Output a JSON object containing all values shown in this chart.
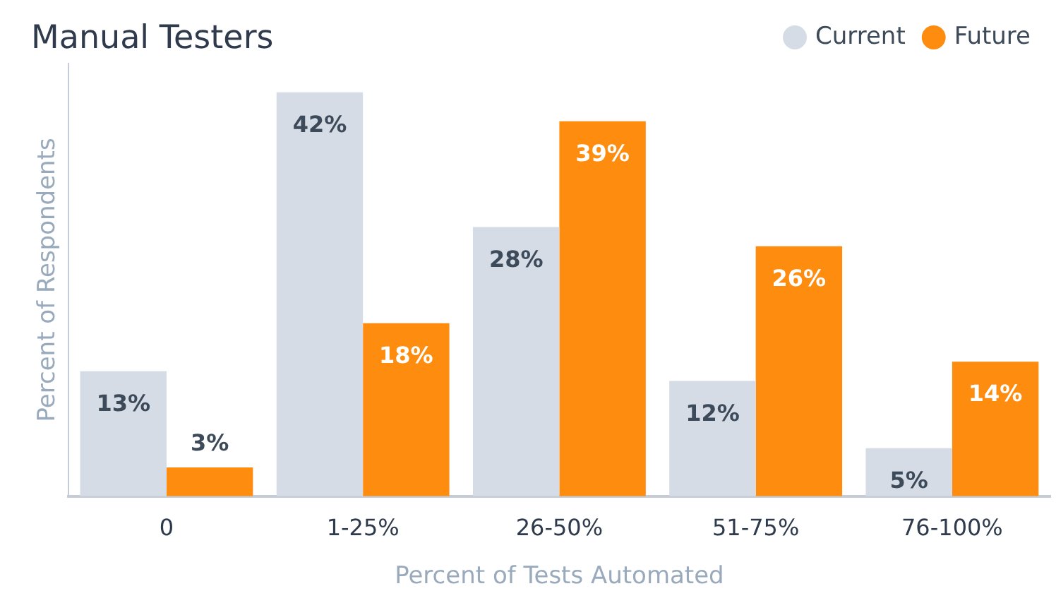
{
  "chart_data": {
    "type": "bar",
    "title": "Manual Testers",
    "xlabel": "Percent of Tests Automated",
    "ylabel": "Percent of Respondents",
    "categories": [
      "0",
      "1-25%",
      "26-50%",
      "51-75%",
      "76-100%"
    ],
    "series": [
      {
        "name": "Current",
        "color": "#d5dce6",
        "values": [
          13,
          42,
          28,
          12,
          5
        ],
        "value_labels": [
          "13%",
          "42%",
          "28%",
          "12%",
          "5%"
        ]
      },
      {
        "name": "Future",
        "color": "#fe8c0f",
        "values": [
          3,
          18,
          39,
          26,
          14
        ],
        "value_labels": [
          "3%",
          "18%",
          "39%",
          "26%",
          "14%"
        ]
      }
    ],
    "legend": "top right",
    "grid": false,
    "tick_labels": "x"
  }
}
